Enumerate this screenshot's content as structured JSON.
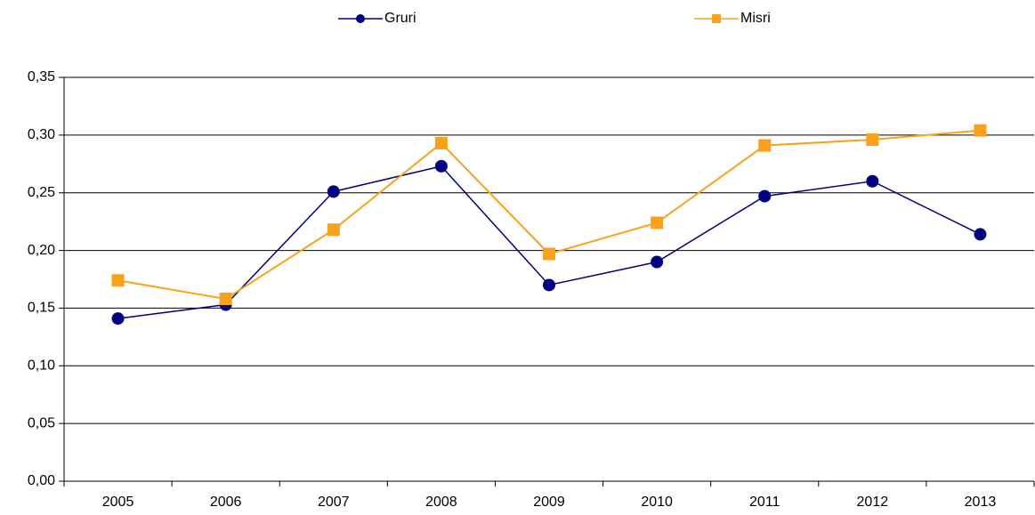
{
  "chart_data": {
    "type": "line",
    "categories": [
      "2005",
      "2006",
      "2007",
      "2008",
      "2009",
      "2010",
      "2011",
      "2012",
      "2013"
    ],
    "series": [
      {
        "name": "Gruri",
        "color": "#000080",
        "marker": "circle",
        "values": [
          0.141,
          0.153,
          0.251,
          0.273,
          0.17,
          0.19,
          0.247,
          0.26,
          0.214
        ]
      },
      {
        "name": "Misri",
        "color": "#f9a11b",
        "marker": "square",
        "values": [
          0.174,
          0.158,
          0.218,
          0.293,
          0.197,
          0.224,
          0.291,
          0.296,
          0.304
        ]
      }
    ],
    "ylim": [
      0,
      0.35
    ],
    "yticks": [
      {
        "value": 0,
        "label": "0,00"
      },
      {
        "value": 0.05,
        "label": "0,05"
      },
      {
        "value": 0.1,
        "label": "0,10"
      },
      {
        "value": 0.15,
        "label": "0,15"
      },
      {
        "value": 0.2,
        "label": "0,20"
      },
      {
        "value": 0.25,
        "label": "0,25"
      },
      {
        "value": 0.3,
        "label": "0,30"
      },
      {
        "value": 0.35,
        "label": "0,35"
      }
    ],
    "grid": true,
    "legend": "top"
  }
}
